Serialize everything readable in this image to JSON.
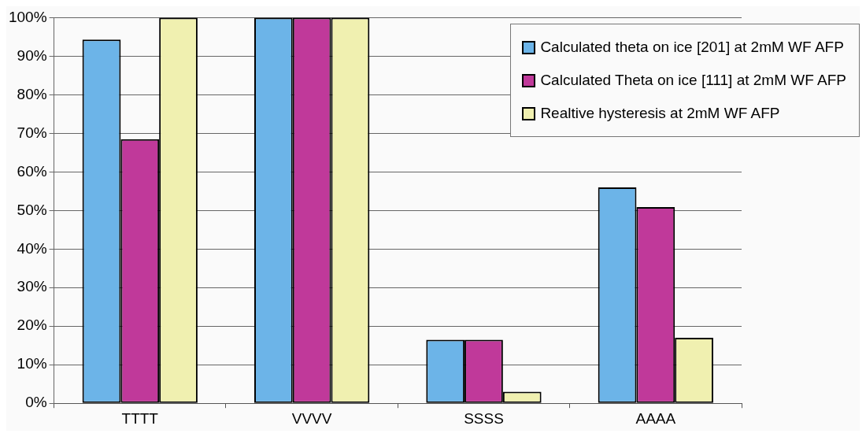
{
  "chart_data": {
    "type": "bar",
    "categories": [
      "TTTT",
      "VVVV",
      "SSSS",
      "AAAA"
    ],
    "series": [
      {
        "name": "Calculated theta on ice [201] at 2mM WF AFP",
        "color": "#6cb4e8",
        "values": [
          94.3,
          100,
          16.5,
          56
        ]
      },
      {
        "name": "Calculated Theta on ice [111] at 2mM WF AFP",
        "color": "#c0399a",
        "values": [
          68.5,
          100,
          16.5,
          50.9
        ]
      },
      {
        "name": "Realtive hysteresis at 2mM WF AFP",
        "color": "#f0f0b0",
        "values": [
          100,
          100,
          3,
          17
        ]
      }
    ],
    "ylim": [
      0,
      100
    ],
    "yticks": [
      {
        "value": 0,
        "label": "0%"
      },
      {
        "value": 10,
        "label": "10%"
      },
      {
        "value": 20,
        "label": "20%"
      },
      {
        "value": 30,
        "label": "30%"
      },
      {
        "value": 40,
        "label": "40%"
      },
      {
        "value": 50,
        "label": "50%"
      },
      {
        "value": 60,
        "label": "60%"
      },
      {
        "value": 70,
        "label": "70%"
      },
      {
        "value": 80,
        "label": "80%"
      },
      {
        "value": 90,
        "label": "90%"
      },
      {
        "value": 100,
        "label": "100%"
      }
    ],
    "grid": "y",
    "legend": "top right"
  }
}
